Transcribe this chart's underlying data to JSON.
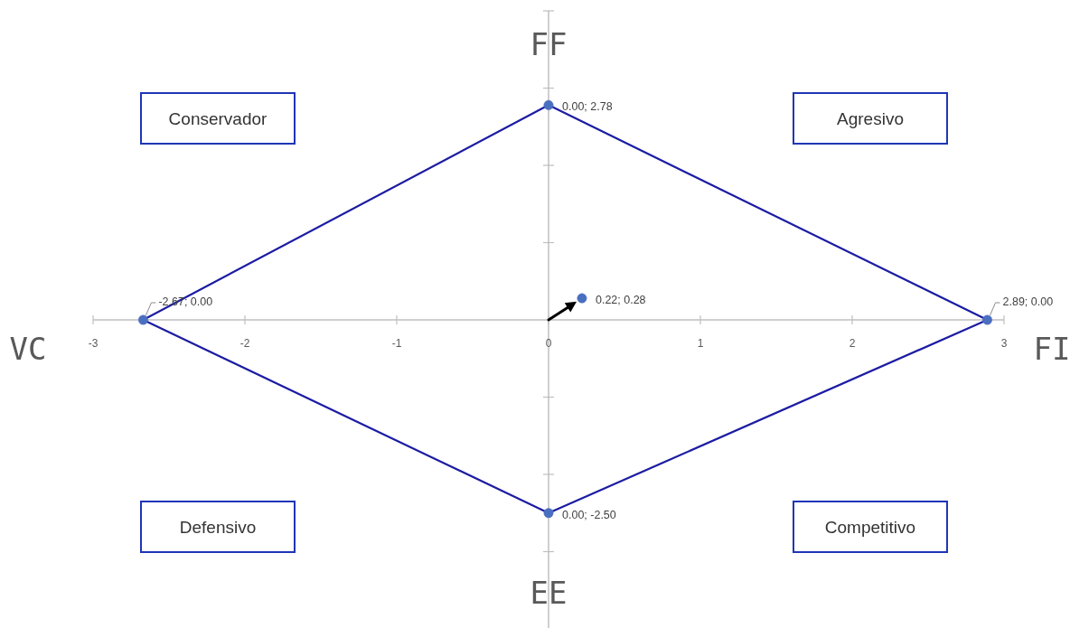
{
  "chart_data": {
    "type": "line",
    "xlabel": "FI",
    "ylabel": "FF",
    "annotations": [
      "VC",
      "EE",
      "Conservador",
      "Agresivo",
      "Defensivo",
      "Competitivo"
    ],
    "xlim": [
      -3,
      3
    ],
    "xticks": [
      -3,
      -2,
      -1,
      0,
      1,
      2,
      3
    ],
    "ylim": [
      -4,
      4
    ],
    "yticks": [
      {
        "value": -3,
        "label": null
      },
      {
        "value": -2,
        "label": null
      },
      {
        "value": -1,
        "label": null
      },
      {
        "value": 1,
        "label": null
      },
      {
        "value": 2,
        "label": null
      },
      {
        "value": 3,
        "label": null
      },
      {
        "value": 4,
        "label": null
      }
    ],
    "tick_labels": "x",
    "marker": "circle",
    "series": [
      {
        "color": "#1c1ca3",
        "marker": "none",
        "x": [
          -2.67,
          0,
          2.89
        ],
        "values": [
          0,
          2.78,
          0
        ]
      },
      {
        "color": "#1c1ca3",
        "marker": "none",
        "x": [
          -2.67,
          0,
          2.89
        ],
        "values": [
          0,
          -2.5,
          0
        ]
      },
      {
        "type": "scatter",
        "color": "#4a6fc0",
        "x": [
          0,
          2.89,
          0,
          -2.67,
          0.22
        ],
        "values": [
          2.78,
          0,
          -2.5,
          0,
          0.28
        ],
        "value_labels": [
          "0.00; 2.78",
          "2.89; 0.00",
          "0.00; -2.50",
          "-2.67; 0.00",
          "0.22; 0.28"
        ]
      }
    ]
  }
}
